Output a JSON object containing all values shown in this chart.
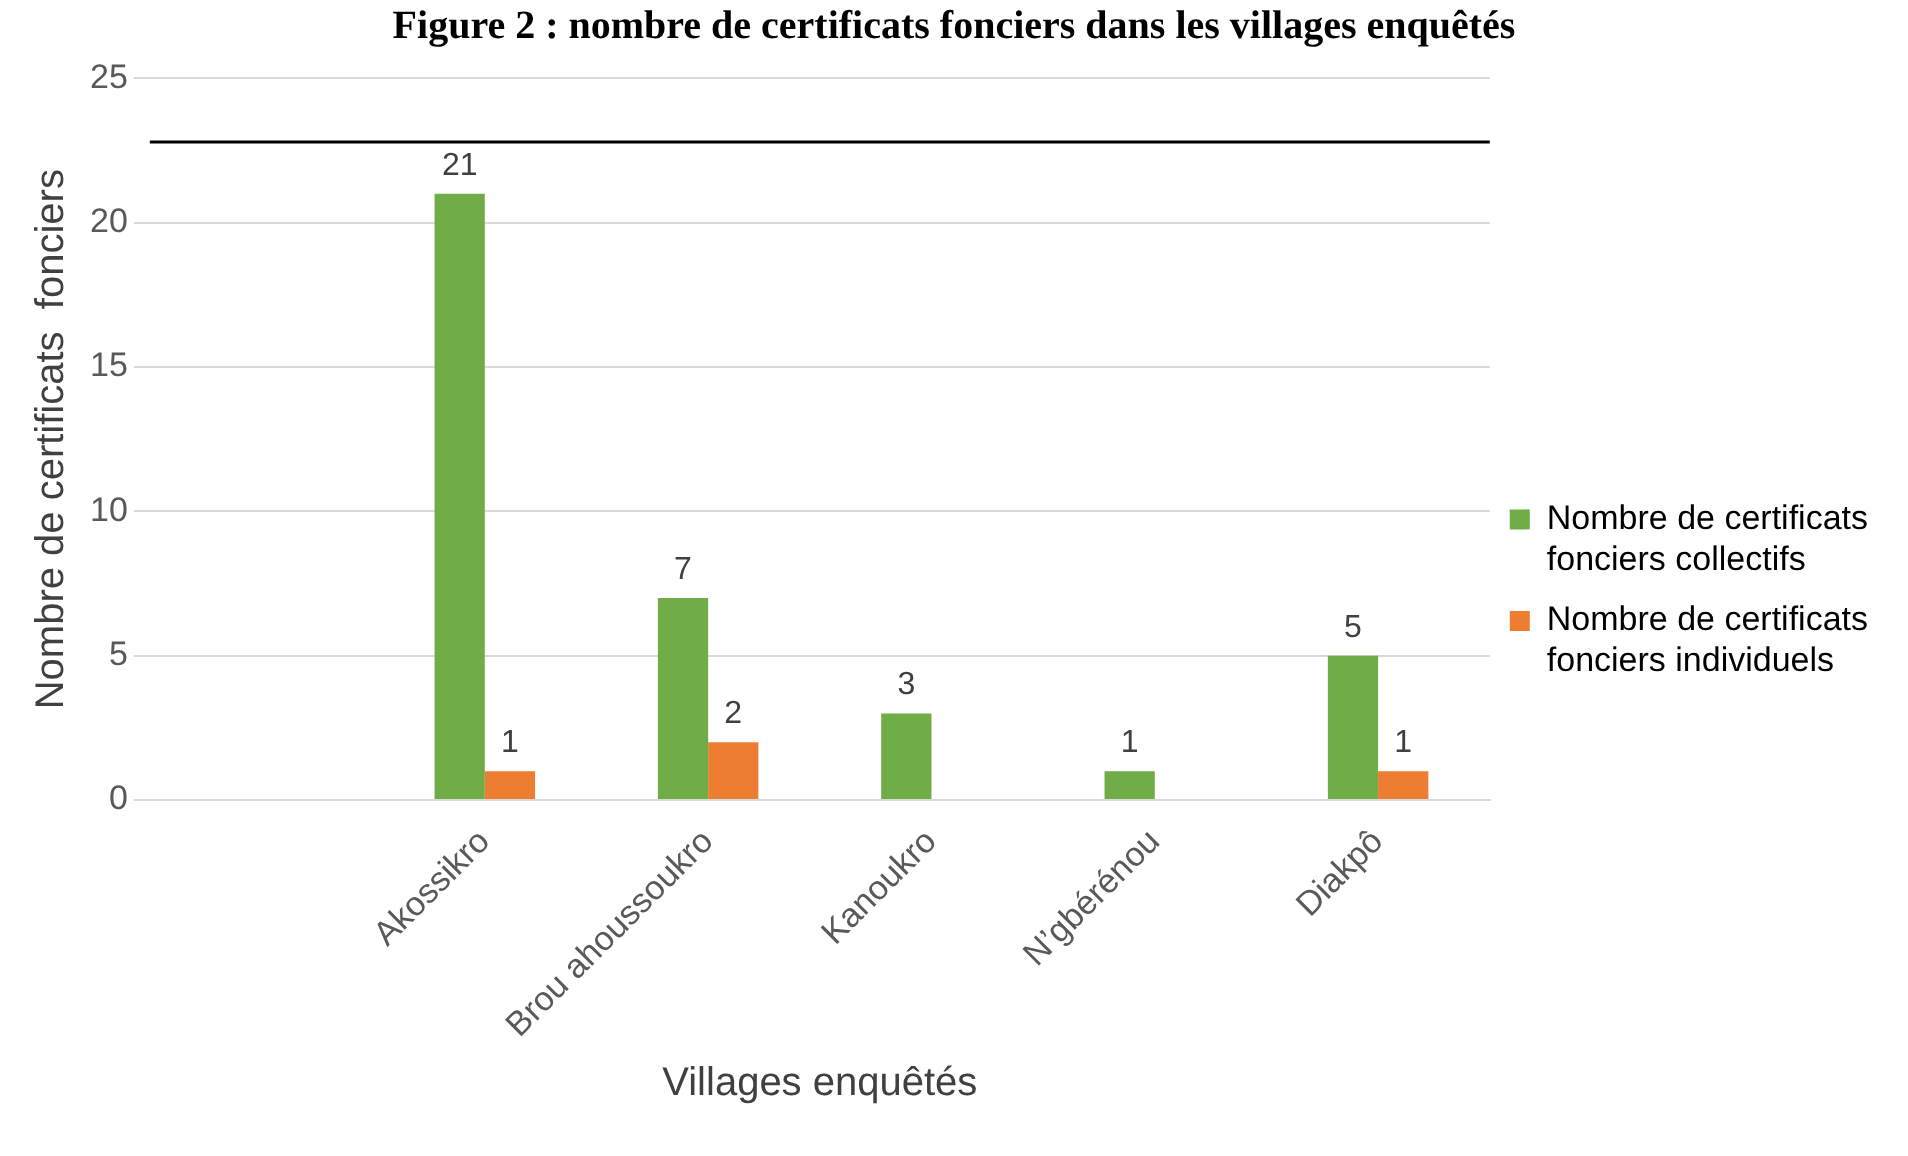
{
  "chart_data": {
    "type": "bar",
    "title": "Figure 2 : nombre de certificats fonciers dans les villages enquêtés",
    "xlabel": "Villages enquêtés",
    "ylabel": "Nombre de certificats  fonciers",
    "categories": [
      null,
      "Akossikro",
      "Brou ahoussoukro",
      "Kanoukro",
      "N’gbérénou",
      "Diakpô"
    ],
    "series": [
      {
        "name": "Nombre de certificats fonciers collectifs",
        "color": "#70ad47",
        "values": [
          null,
          21,
          7,
          3,
          1,
          5
        ]
      },
      {
        "name": "Nombre de certificats fonciers individuels",
        "color": "#ed7d31",
        "values": [
          null,
          1,
          2,
          null,
          null,
          1
        ]
      }
    ],
    "ylim": [
      0,
      25
    ],
    "yticks": [
      0,
      5,
      10,
      15,
      20,
      25
    ],
    "grid": "y",
    "legend": "right",
    "data_labels": true,
    "ref_lines": [
      {
        "axis": "y",
        "value": 22.8,
        "color": "#000000"
      }
    ]
  }
}
